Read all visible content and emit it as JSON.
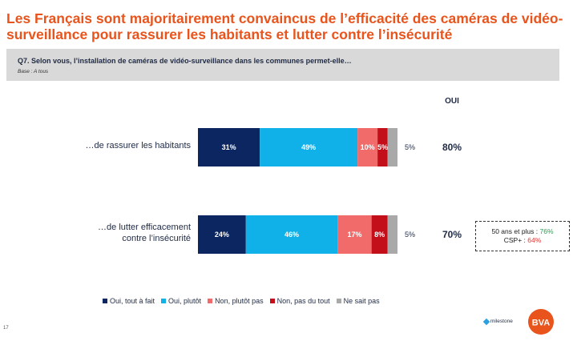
{
  "title": "Les Français sont majoritairement convaincus de l’efficacité des caméras de vidéo-surveillance pour rassurer les habitants et lutter contre l’insécurité",
  "question": "Q7. Selon vous, l’installation de caméras de vidéo-surveillance dans les communes permet-elle…",
  "base": "Base : A tous",
  "oui_header": "OUI",
  "colors": {
    "title": "#e8541c",
    "oui_tout_a_fait": "#0b2660",
    "oui_plutot": "#10b1e9",
    "non_plutot_pas": "#f26b6b",
    "non_pas_du_tout": "#c30f1a",
    "nsp": "#a9a9a9"
  },
  "chart_data": {
    "type": "bar",
    "orientation": "horizontal",
    "stacked": true,
    "categories": [
      "…de rassurer les habitants",
      "…de lutter efficacement contre l’insécurité"
    ],
    "category_lines": [
      [
        "…de rassurer les habitants"
      ],
      [
        "…de lutter efficacement",
        "contre l’insécurité"
      ]
    ],
    "series": [
      {
        "name": "Oui, tout à fait",
        "values": [
          31,
          24
        ]
      },
      {
        "name": "Oui, plutôt",
        "values": [
          49,
          46
        ]
      },
      {
        "name": "Non, plutôt pas",
        "values": [
          10,
          17
        ]
      },
      {
        "name": "Non, pas du tout",
        "values": [
          5,
          8
        ]
      },
      {
        "name": "Ne sait pas",
        "values": [
          5,
          5
        ]
      }
    ],
    "data_labels": [
      [
        "31%",
        "49%",
        "10%",
        "5%",
        "5%"
      ],
      [
        "24%",
        "46%",
        "17%",
        "8%",
        "5%"
      ]
    ],
    "oui_totals": [
      "80%",
      "70%"
    ],
    "xlim": [
      0,
      100
    ],
    "legend_position": "bottom",
    "grid": false
  },
  "callout": {
    "line1_label": "50 ans et plus : ",
    "line1_value": "76%",
    "line2_label": "CSP+ : ",
    "line2_value": "64%"
  },
  "footer": {
    "page_number": "17",
    "milestone": "milestone",
    "logo_text": "BVA"
  }
}
